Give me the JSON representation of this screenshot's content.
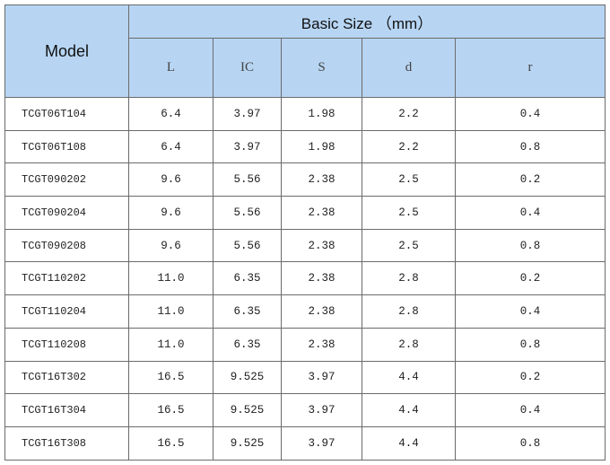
{
  "table": {
    "model_header": "Model",
    "group_header": "Basic Size （mm）",
    "columns": [
      "L",
      "IC",
      "S",
      "d",
      "r"
    ],
    "rows": [
      [
        "TCGT06T104",
        "6.4",
        "3.97",
        "1.98",
        "2.2",
        "0.4"
      ],
      [
        "TCGT06T108",
        "6.4",
        "3.97",
        "1.98",
        "2.2",
        "0.8"
      ],
      [
        "TCGT090202",
        "9.6",
        "5.56",
        "2.38",
        "2.5",
        "0.2"
      ],
      [
        "TCGT090204",
        "9.6",
        "5.56",
        "2.38",
        "2.5",
        "0.4"
      ],
      [
        "TCGT090208",
        "9.6",
        "5.56",
        "2.38",
        "2.5",
        "0.8"
      ],
      [
        "TCGT110202",
        "11.0",
        "6.35",
        "2.38",
        "2.8",
        "0.2"
      ],
      [
        "TCGT110204",
        "11.0",
        "6.35",
        "2.38",
        "2.8",
        "0.4"
      ],
      [
        "TCGT110208",
        "11.0",
        "6.35",
        "2.38",
        "2.8",
        "0.8"
      ],
      [
        "TCGT16T302",
        "16.5",
        "9.525",
        "3.97",
        "4.4",
        "0.2"
      ],
      [
        "TCGT16T304",
        "16.5",
        "9.525",
        "3.97",
        "4.4",
        "0.4"
      ],
      [
        "TCGT16T308",
        "16.5",
        "9.525",
        "3.97",
        "4.4",
        "0.8"
      ]
    ]
  }
}
